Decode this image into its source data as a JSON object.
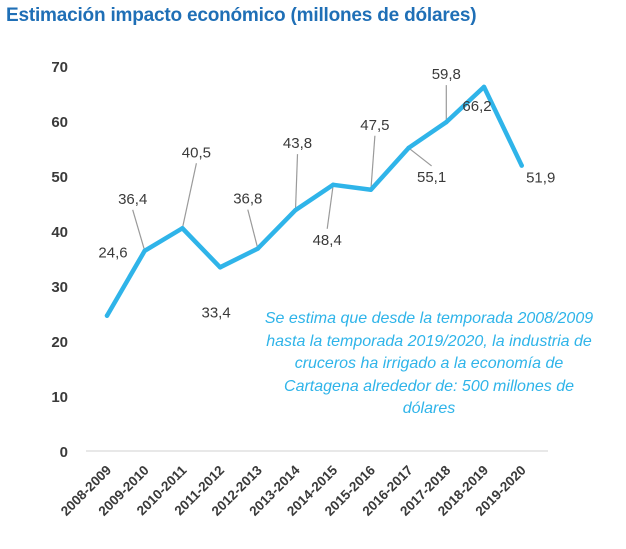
{
  "chart_data": {
    "type": "line",
    "title": "Estimación impacto económico (millones de dólares)",
    "xlabel": "",
    "ylabel": "",
    "categories": [
      "2008-2009",
      "2009-2010",
      "2010-2011",
      "2011-2012",
      "2012-2013",
      "2013-2014",
      "2014-2015",
      "2015-2016",
      "2016-2017",
      "2017-2018",
      "2018-2019",
      "2019-2020"
    ],
    "series": [
      {
        "values": [
          24.6,
          36.4,
          40.5,
          33.4,
          36.8,
          43.8,
          48.4,
          47.5,
          55.1,
          59.8,
          66.2,
          51.9
        ],
        "data_labels": [
          "24,6",
          "36,4",
          "40,5",
          "33,4",
          "36,8",
          "43,8",
          "48,4",
          "47,5",
          "55,1",
          "59,8",
          "66,2",
          "51,9"
        ]
      }
    ],
    "ylim": [
      0,
      70
    ],
    "yticks": [
      0,
      10,
      20,
      30,
      40,
      50,
      60,
      70
    ],
    "grid": false,
    "line_color": "#2fb4e9",
    "leader_color": "#9a9a9a",
    "annotation": "Se estima que desde la temporada 2008/2009 hasta la temporada 2019/2020, la industria de cruceros ha irrigado a la economía de Cartagena alrededor de: 500 millones de dólares"
  }
}
